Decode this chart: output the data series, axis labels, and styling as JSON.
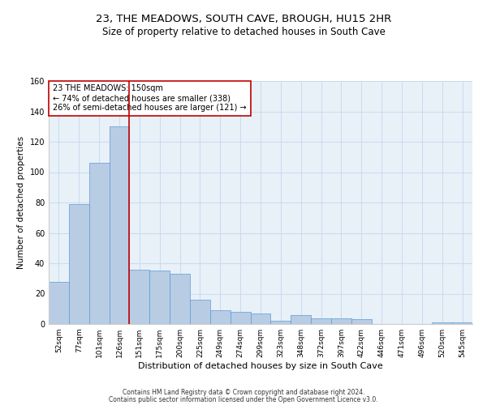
{
  "title": "23, THE MEADOWS, SOUTH CAVE, BROUGH, HU15 2HR",
  "subtitle": "Size of property relative to detached houses in South Cave",
  "xlabel": "Distribution of detached houses by size in South Cave",
  "ylabel": "Number of detached properties",
  "footnote1": "Contains HM Land Registry data © Crown copyright and database right 2024.",
  "footnote2": "Contains public sector information licensed under the Open Government Licence v3.0.",
  "bin_labels": [
    "52sqm",
    "77sqm",
    "101sqm",
    "126sqm",
    "151sqm",
    "175sqm",
    "200sqm",
    "225sqm",
    "249sqm",
    "274sqm",
    "299sqm",
    "323sqm",
    "348sqm",
    "372sqm",
    "397sqm",
    "422sqm",
    "446sqm",
    "471sqm",
    "496sqm",
    "520sqm",
    "545sqm"
  ],
  "bar_values": [
    28,
    79,
    106,
    130,
    36,
    35,
    33,
    16,
    9,
    8,
    7,
    2,
    6,
    4,
    4,
    3,
    0,
    0,
    0,
    1,
    1
  ],
  "bar_color": "#b8cce4",
  "bar_edge_color": "#5b9bd5",
  "vline_color": "#c00000",
  "annotation_text": "23 THE MEADOWS: 150sqm\n← 74% of detached houses are smaller (338)\n26% of semi-detached houses are larger (121) →",
  "annotation_box_color": "#c00000",
  "ylim": [
    0,
    160
  ],
  "yticks": [
    0,
    20,
    40,
    60,
    80,
    100,
    120,
    140,
    160
  ],
  "grid_color": "#c5d8ee",
  "bg_color": "#e8f0f8",
  "title_fontsize": 9.5,
  "subtitle_fontsize": 8.5,
  "xlabel_fontsize": 8,
  "ylabel_fontsize": 7.5,
  "tick_fontsize": 6.5,
  "annot_fontsize": 7,
  "footnote_fontsize": 5.5
}
